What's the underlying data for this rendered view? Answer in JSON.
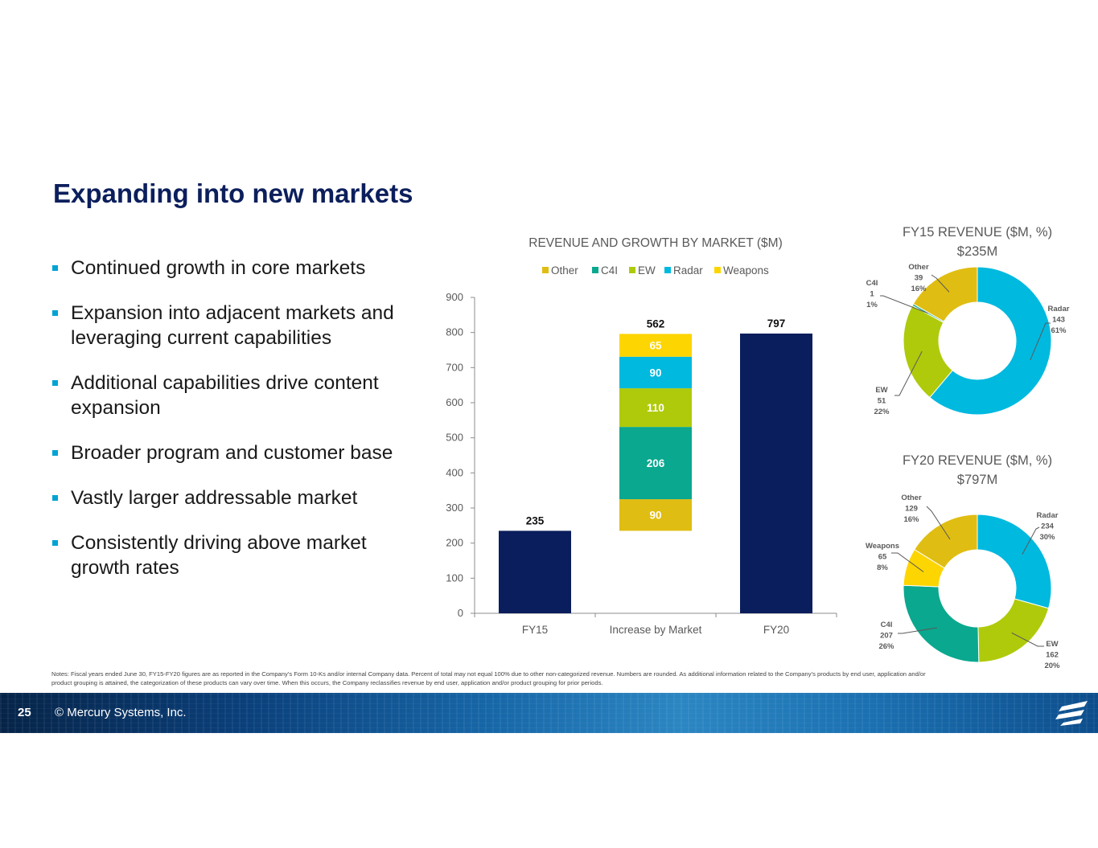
{
  "slide": {
    "title": "Expanding into new markets",
    "bullets": [
      "Continued growth in core markets",
      "Expansion into adjacent markets and leveraging current capabilities",
      "Additional capabilities drive content expansion",
      "Broader program and customer base",
      "Vastly larger addressable market",
      "Consistently driving above market growth rates"
    ],
    "notes": "Notes: Fiscal years ended June 30, FY15-FY20 figures are as reported in the Company’s Form 10-Ks and/or internal Company data. Percent of total may not equal 100% due to other non-categorized revenue. Numbers are rounded. As additional information related to the Company’s products by end user, application and/or product grouping is attained, the categorization of these products can vary over time. When this occurs, the Company reclassifies revenue by end user, application and/or product grouping for prior periods.",
    "footer": {
      "page_number": "25",
      "copyright": "© Mercury Systems, Inc."
    },
    "colors": {
      "title": "#0c1f5c",
      "bullet": "#00a3d3",
      "navy": "#0a1d5c",
      "other": "#e0bd12",
      "c4i": "#0aa88f",
      "ew": "#afca0b",
      "radar": "#00b9df",
      "weapons": "#fdd500"
    }
  },
  "chart_data": [
    {
      "type": "bar",
      "title": "REVENUE AND GROWTH BY MARKET ($M)",
      "categories": [
        "FY15",
        "Increase by Market",
        "FY20"
      ],
      "ylim": [
        0,
        900
      ],
      "yticks": [
        0,
        100,
        200,
        300,
        400,
        500,
        600,
        700,
        800,
        900
      ],
      "legend": [
        "Other",
        "C4I",
        "EW",
        "Radar",
        "Weapons"
      ],
      "legend_position": "top",
      "totals": [
        {
          "category": "FY15",
          "value": 235,
          "label": "235"
        },
        {
          "category": "FY20",
          "value": 797,
          "label": "797"
        }
      ],
      "waterfall_base": 235,
      "waterfall_top_label": "562",
      "increase_segments": [
        {
          "name": "Other",
          "value": 90
        },
        {
          "name": "C4I",
          "value": 206
        },
        {
          "name": "EW",
          "value": 110
        },
        {
          "name": "Radar",
          "value": 90
        },
        {
          "name": "Weapons",
          "value": 65
        }
      ],
      "grid": false
    },
    {
      "type": "pie",
      "title": "FY15 REVENUE ($M, %)",
      "subtitle": "$235M",
      "slices": [
        {
          "name": "Radar",
          "value": 143,
          "pct": "61%"
        },
        {
          "name": "EW",
          "value": 51,
          "pct": "22%"
        },
        {
          "name": "C4I",
          "value": 1,
          "pct": "1%"
        },
        {
          "name": "Other",
          "value": 39,
          "pct": "16%"
        }
      ]
    },
    {
      "type": "pie",
      "title": "FY20 REVENUE ($M, %)",
      "subtitle": "$797M",
      "slices": [
        {
          "name": "Radar",
          "value": 234,
          "pct": "30%"
        },
        {
          "name": "EW",
          "value": 162,
          "pct": "20%"
        },
        {
          "name": "C4I",
          "value": 207,
          "pct": "26%"
        },
        {
          "name": "Weapons",
          "value": 65,
          "pct": "8%"
        },
        {
          "name": "Other",
          "value": 129,
          "pct": "16%"
        }
      ]
    }
  ]
}
